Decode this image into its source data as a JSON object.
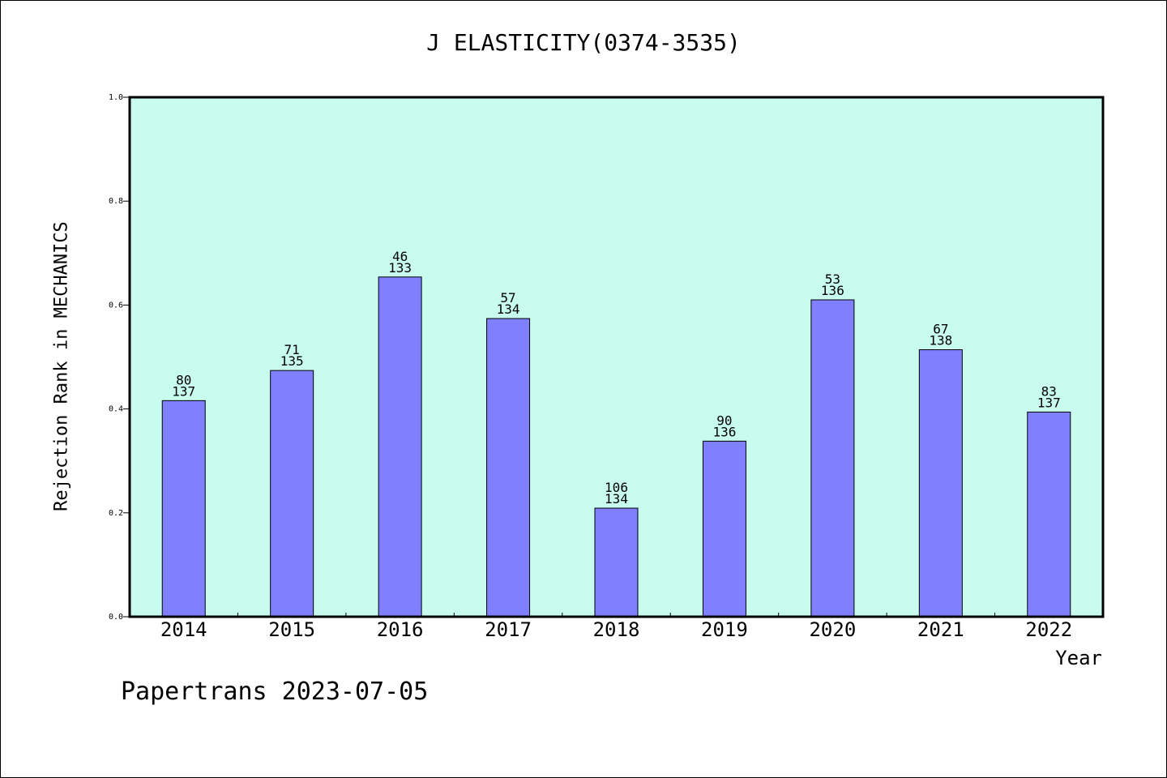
{
  "chart_data": {
    "type": "bar",
    "title": "J ELASTICITY(0374-3535)",
    "xlabel": "Year",
    "ylabel": "Rejection Rank in MECHANICS",
    "ylim": [
      0.0,
      1.0
    ],
    "yticks": [
      "0.0",
      "0.2",
      "0.4",
      "0.6",
      "0.8",
      "1.0"
    ],
    "categories": [
      "2014",
      "2015",
      "2016",
      "2017",
      "2018",
      "2019",
      "2020",
      "2021",
      "2022"
    ],
    "values": [
      0.416,
      0.474,
      0.654,
      0.574,
      0.209,
      0.338,
      0.61,
      0.514,
      0.394
    ],
    "bar_labels": [
      [
        "80",
        "137"
      ],
      [
        "71",
        "135"
      ],
      [
        "46",
        "133"
      ],
      [
        "57",
        "134"
      ],
      [
        "106",
        "134"
      ],
      [
        "90",
        "136"
      ],
      [
        "53",
        "136"
      ],
      [
        "67",
        "138"
      ],
      [
        "83",
        "137"
      ]
    ],
    "grid": false,
    "colors": {
      "bar": "#8080ff",
      "plot_background": "#c8fcee",
      "axis": "#000000"
    }
  },
  "footer": "Papertrans 2023-07-05"
}
